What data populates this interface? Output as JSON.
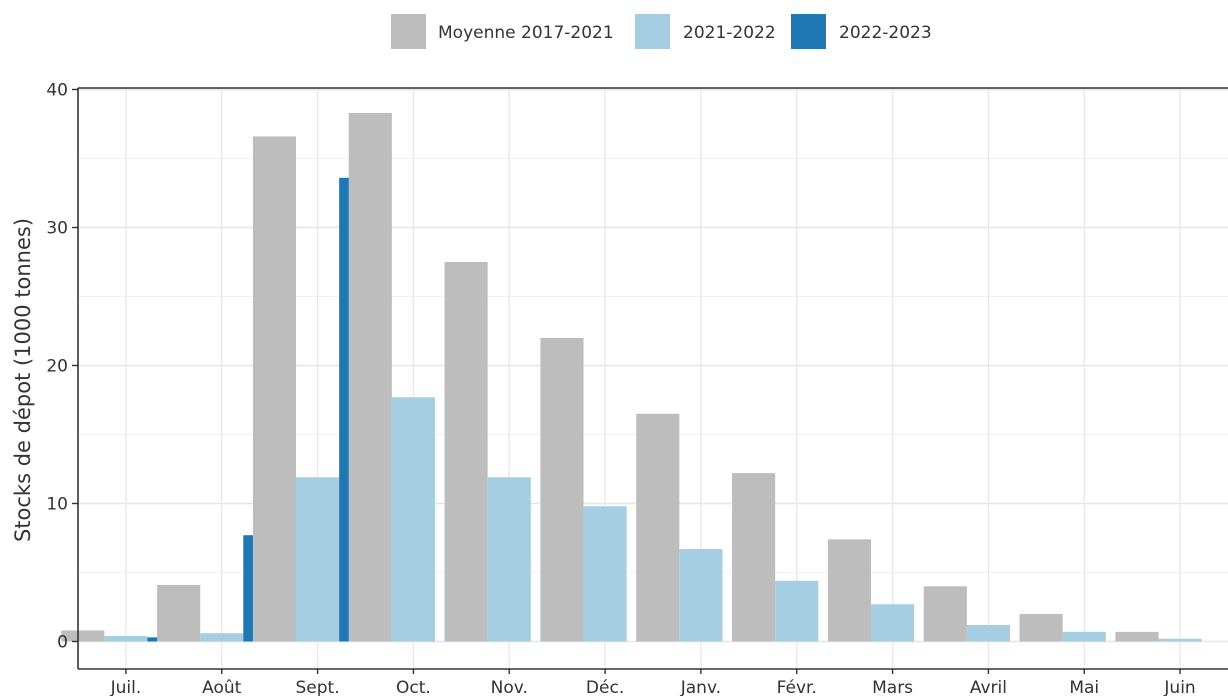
{
  "chart_data": {
    "type": "bar",
    "categories": [
      "Juil.",
      "Août",
      "Sept.",
      "Oct.",
      "Nov.",
      "Déc.",
      "Janv.",
      "Févr.",
      "Mars",
      "Avril",
      "Mai",
      "Juin"
    ],
    "series": [
      {
        "name": "Moyenne 2017-2021",
        "color": "#bdbdbd",
        "values": [
          0.8,
          4.1,
          36.6,
          38.3,
          27.5,
          22.0,
          16.5,
          12.2,
          7.4,
          4.0,
          2.0,
          0.7
        ]
      },
      {
        "name": "2021-2022",
        "color": "#a6cee3",
        "values": [
          0.4,
          0.6,
          11.9,
          17.7,
          11.9,
          9.8,
          6.7,
          4.4,
          2.7,
          1.2,
          0.7,
          0.2
        ]
      },
      {
        "name": "2022-2023",
        "color": "#1f78b4",
        "values": [
          0.3,
          7.7,
          33.6,
          null,
          null,
          null,
          null,
          null,
          null,
          null,
          null,
          null
        ]
      }
    ],
    "ylabel": "Stocks de dépot (1000 tonnes)",
    "xlabel": "",
    "ylim": [
      0,
      40
    ],
    "yticks": [
      0,
      10,
      20,
      30,
      40
    ],
    "grid": true,
    "legend_position": "top"
  }
}
